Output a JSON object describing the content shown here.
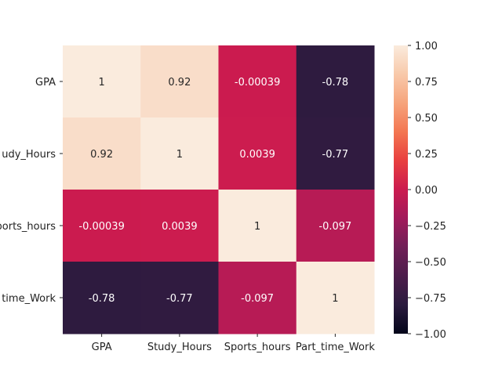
{
  "chart_data": {
    "type": "heatmap",
    "title": "",
    "xlabel": "",
    "ylabel": "",
    "x_categories": [
      "GPA",
      "Study_Hours",
      "Sports_hours",
      "Part_time_Work"
    ],
    "y_categories": [
      "GPA",
      "Study_Hours",
      "Sports_hours",
      "Part_time_Work"
    ],
    "y_tick_labels_visible": [
      "GPA",
      "udy_Hours",
      "ports_hours",
      "time_Work"
    ],
    "values": [
      [
        1,
        0.92,
        -0.00039,
        -0.78
      ],
      [
        0.92,
        1,
        0.0039,
        -0.77
      ],
      [
        -0.00039,
        0.0039,
        1,
        -0.097
      ],
      [
        -0.78,
        -0.77,
        -0.097,
        1
      ]
    ],
    "annotations": [
      [
        "1",
        "0.92",
        "-0.00039",
        "-0.78"
      ],
      [
        "0.92",
        "1",
        "0.0039",
        "-0.77"
      ],
      [
        "-0.00039",
        "0.0039",
        "1",
        "-0.097"
      ],
      [
        "-0.78",
        "-0.77",
        "-0.097",
        "1"
      ]
    ],
    "vmin": -1,
    "vmax": 1,
    "colormap": "rocket",
    "colorbar": {
      "ticks": [
        1.0,
        0.75,
        0.5,
        0.25,
        0.0,
        -0.25,
        -0.5,
        -0.75,
        -1.0
      ],
      "tick_labels": [
        "1.00",
        "0.75",
        "0.50",
        "0.25",
        "0.00",
        "−0.25",
        "−0.50",
        "−0.75",
        "−1.00"
      ]
    }
  },
  "colors": {
    "cmap_stops": [
      "#03051a",
      "#2b1b3e",
      "#4c1d4b",
      "#701f57",
      "#a11a5b",
      "#cb1b4f",
      "#e83f3f",
      "#f37651",
      "#f6a47c",
      "#f8c9aa",
      "#faebdd"
    ]
  }
}
